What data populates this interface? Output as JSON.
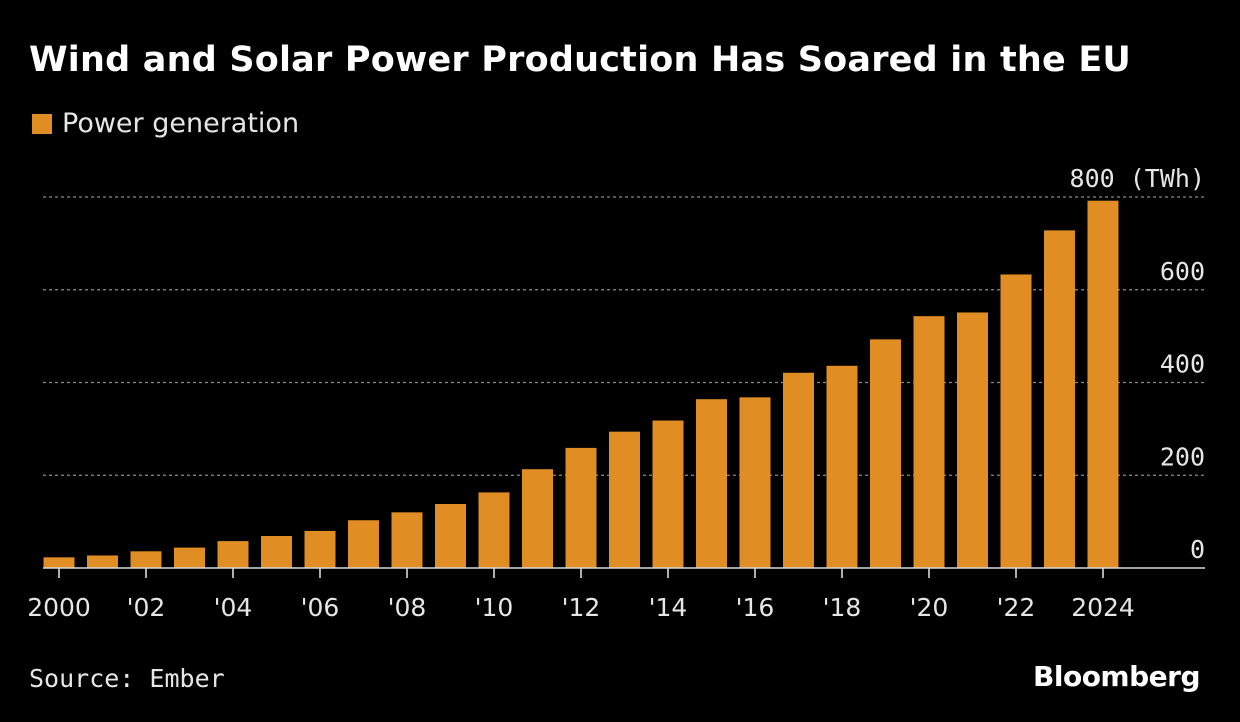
{
  "header": {
    "title": "Wind and Solar Power Production Has Soared in the EU"
  },
  "legend": {
    "label": "Power generation",
    "color": "#e08d24"
  },
  "footer": {
    "source": "Source: Ember",
    "brand": "Bloomberg"
  },
  "chart_data": {
    "type": "bar",
    "title": "Wind and Solar Power Production Has Soared in the EU",
    "unit": "(TWh)",
    "categories": [
      "2000",
      "2001",
      "2002",
      "2003",
      "2004",
      "2005",
      "2006",
      "2007",
      "2008",
      "2009",
      "2010",
      "2011",
      "2012",
      "2013",
      "2014",
      "2015",
      "2016",
      "2017",
      "2018",
      "2019",
      "2020",
      "2021",
      "2022",
      "2023",
      "2024"
    ],
    "series": [
      {
        "name": "Power generation",
        "color": "#e08d24",
        "values": [
          23,
          27,
          36,
          44,
          58,
          69,
          80,
          103,
          120,
          138,
          163,
          213,
          259,
          294,
          318,
          364,
          368,
          421,
          436,
          493,
          543,
          551,
          633,
          728,
          792
        ]
      }
    ],
    "ylim": [
      0,
      800
    ],
    "yticks": [
      0,
      200,
      400,
      600,
      800
    ],
    "ytick_labels": [
      "0",
      "200",
      "400",
      "600",
      "800 (TWh)"
    ],
    "xtick_labels": [
      "2000",
      "'02",
      "'04",
      "'06",
      "'08",
      "'10",
      "'12",
      "'14",
      "'16",
      "'18",
      "'20",
      "'22",
      "2024"
    ],
    "xtick_indices": [
      0,
      2,
      4,
      6,
      8,
      10,
      12,
      14,
      16,
      18,
      20,
      22,
      24
    ],
    "grid": true,
    "y_axis_side": "right",
    "background": "#000000",
    "grid_color": "#8a8a8a",
    "axis_color": "#d9d9d9",
    "text_color": "#e6e6e6"
  }
}
